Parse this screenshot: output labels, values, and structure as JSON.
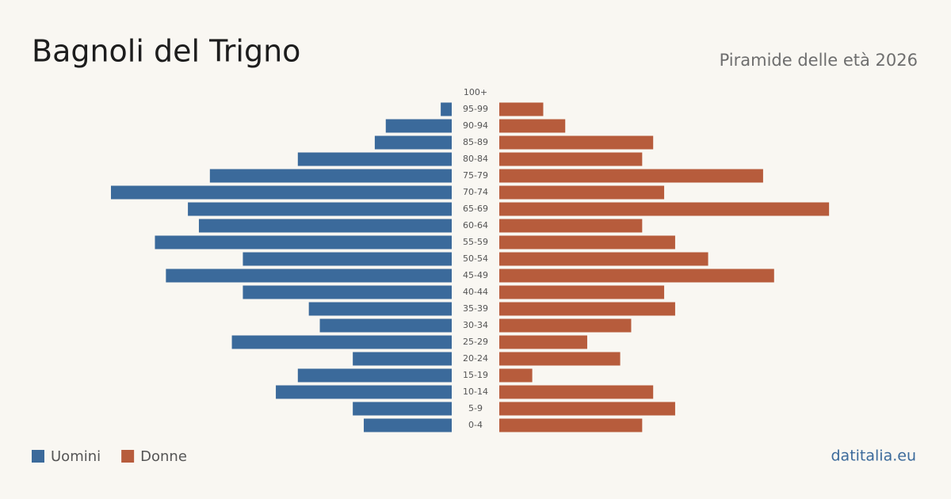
{
  "chart_data": {
    "type": "pyramid",
    "title": "Bagnoli del Trigno",
    "subtitle": "Piramide delle età 2026",
    "source": "datitalia.eu",
    "categories": [
      "100+",
      "95-99",
      "90-94",
      "85-89",
      "80-84",
      "75-79",
      "70-74",
      "65-69",
      "60-64",
      "55-59",
      "50-54",
      "45-49",
      "40-44",
      "35-39",
      "30-34",
      "25-29",
      "20-24",
      "15-19",
      "10-14",
      "5-9",
      "0-4"
    ],
    "series": [
      {
        "name": "Uomini",
        "color": "#3b6a9b",
        "values": [
          0,
          1,
          6,
          7,
          14,
          22,
          31,
          24,
          23,
          27,
          19,
          26,
          19,
          13,
          12,
          20,
          9,
          14,
          16,
          9,
          8
        ]
      },
      {
        "name": "Donne",
        "color": "#b75c3c",
        "values": [
          0,
          4,
          6,
          14,
          13,
          24,
          15,
          30,
          13,
          16,
          19,
          25,
          15,
          16,
          12,
          8,
          11,
          3,
          14,
          16,
          13
        ]
      }
    ]
  }
}
